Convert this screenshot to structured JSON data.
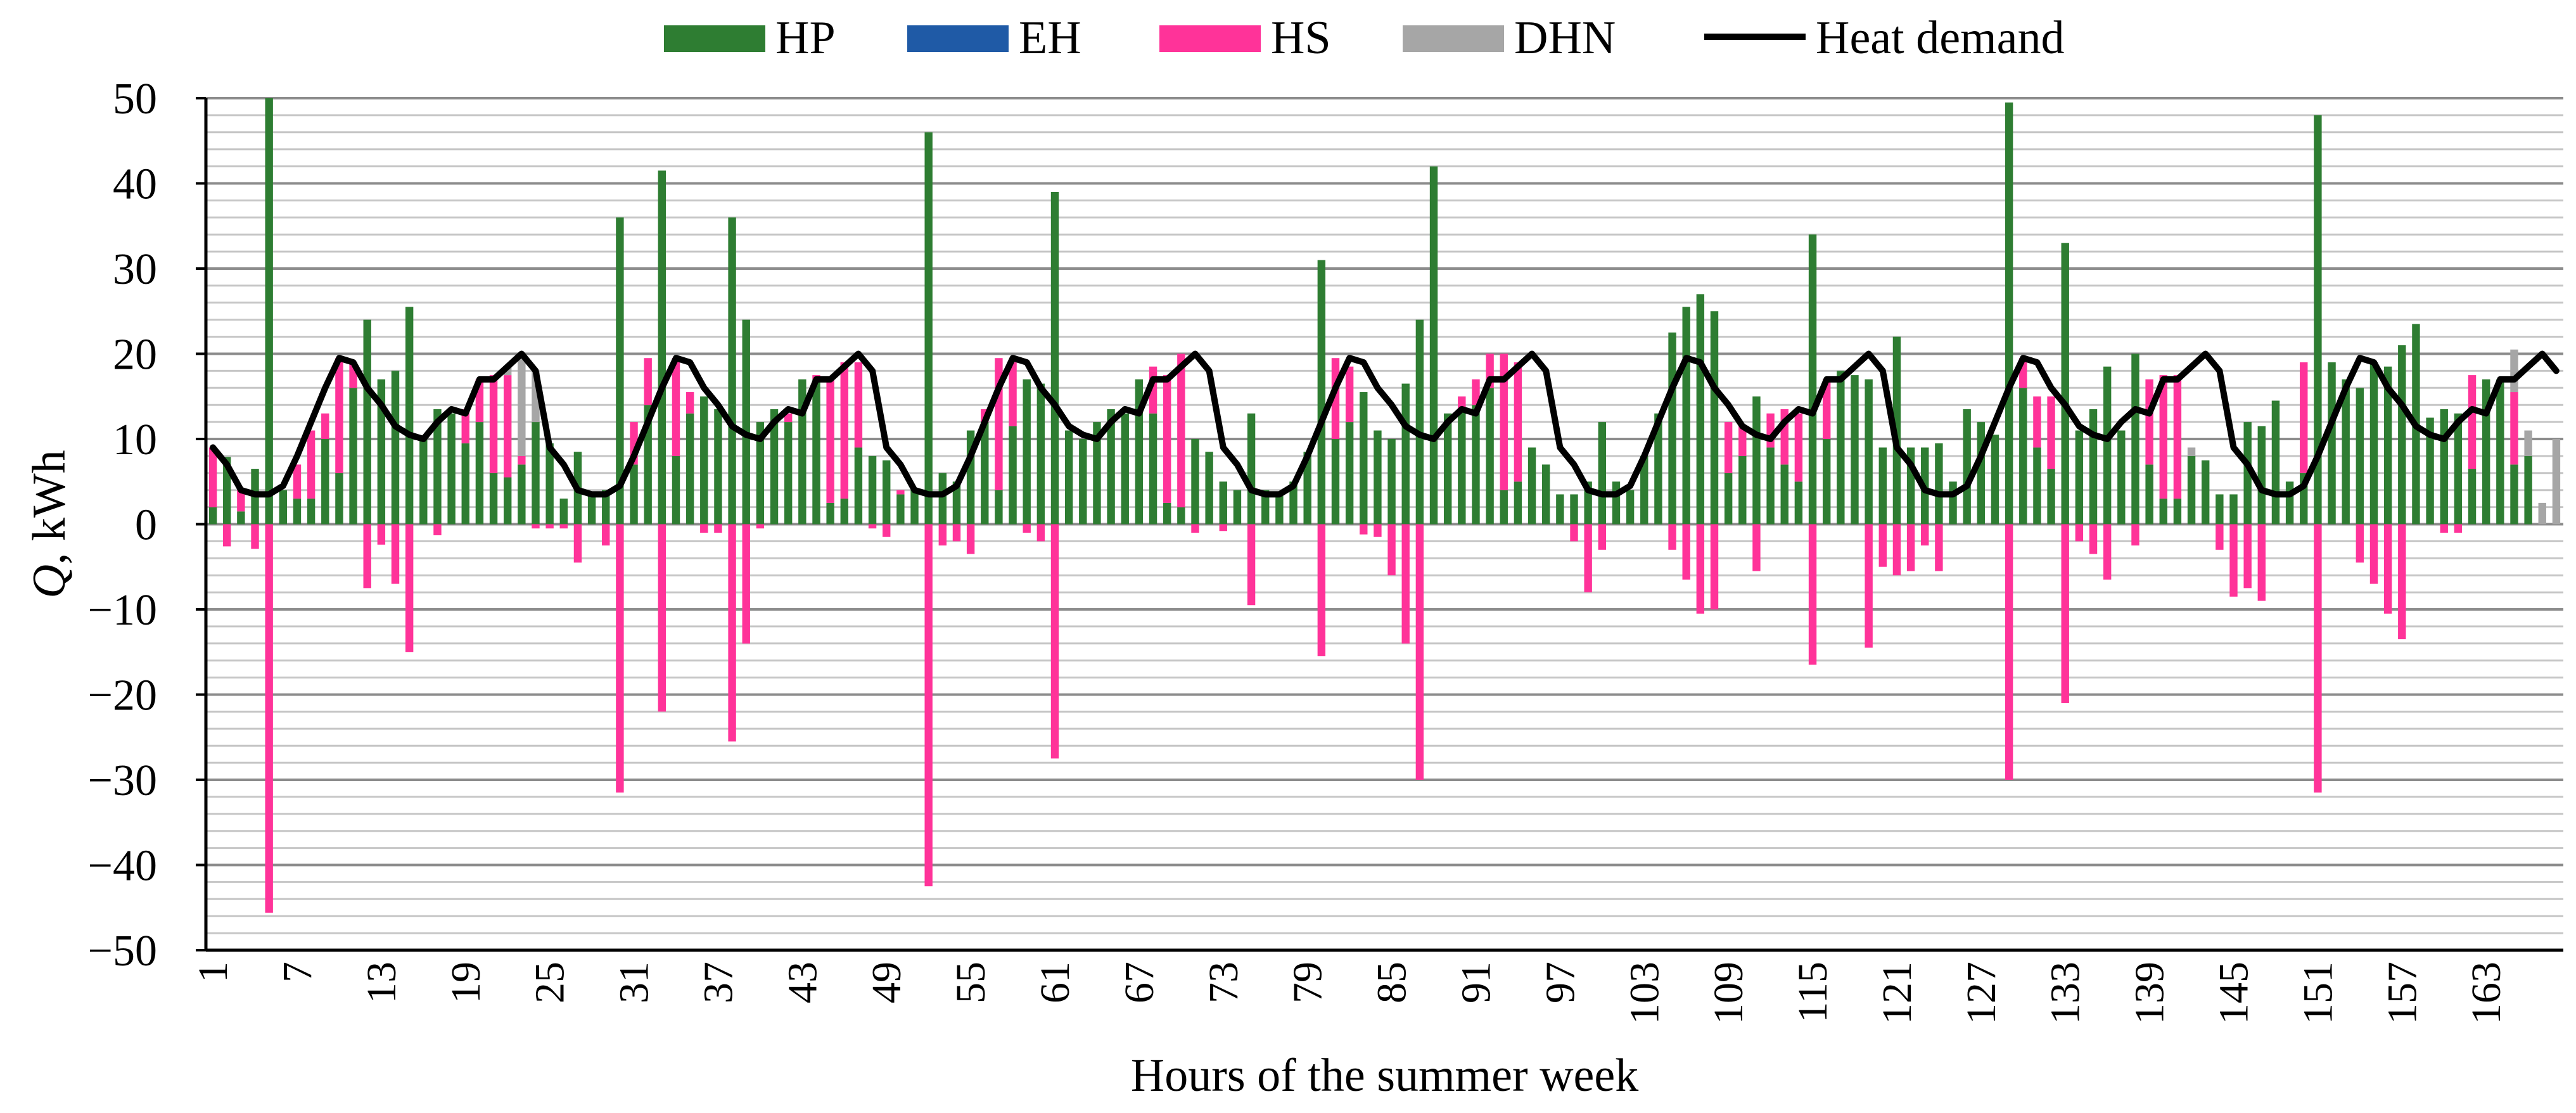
{
  "chart_data": {
    "type": "bar",
    "stacked": true,
    "xlabel": "Hours of the summer week",
    "ylabel_italic": "Q",
    "ylabel_rest": ", kWh",
    "ylim": [
      -50,
      50
    ],
    "yticks": [
      -50,
      -40,
      -30,
      -20,
      -10,
      0,
      10,
      20,
      30,
      40,
      50
    ],
    "xticks": [
      1,
      7,
      13,
      19,
      25,
      31,
      37,
      43,
      49,
      55,
      61,
      67,
      73,
      79,
      85,
      91,
      97,
      103,
      109,
      115,
      121,
      127,
      133,
      139,
      145,
      151,
      157,
      163
    ],
    "hours": 168,
    "grid": "horizontal, every 2 kWh",
    "legend_position": "top",
    "legend": [
      {
        "label": "HP",
        "color": "#2e7d32",
        "kind": "bar"
      },
      {
        "label": "EH",
        "color": "#1f5aa6",
        "kind": "bar"
      },
      {
        "label": "HS",
        "color": "#ff3399",
        "kind": "bar"
      },
      {
        "label": "DHN",
        "color": "#a6a6a6",
        "kind": "bar"
      },
      {
        "label": "Heat demand",
        "color": "#000000",
        "kind": "line"
      }
    ],
    "heat_demand_daily_profile": [
      9,
      7,
      4,
      3.5,
      3.5,
      4.5,
      8,
      12,
      16,
      19.5,
      19,
      16,
      14,
      11.5,
      10.5,
      10,
      12,
      13.5,
      13,
      17,
      17,
      18.5,
      20,
      18
    ],
    "series": [
      {
        "name": "HP",
        "note": "hourly values, 168 hours",
        "values": [
          2.0,
          7.9,
          1.5,
          6.5,
          50.0,
          4.0,
          3.0,
          3.0,
          10.0,
          6.0,
          16.0,
          24.0,
          17.0,
          18.0,
          25.5,
          10.0,
          13.5,
          13.0,
          9.5,
          12.0,
          6.0,
          5.5,
          7.0,
          12.0,
          9.5,
          3.0,
          8.5,
          3.5,
          4.0,
          36.0,
          7.0,
          14.0,
          41.5,
          8.0,
          13.0,
          15.0,
          13.5,
          36.0,
          24.0,
          12.0,
          13.5,
          12.0,
          17.0,
          17.0,
          2.5,
          3.0,
          9.0,
          8.0,
          7.5,
          3.5,
          4.0,
          46.0,
          6.0,
          5.0,
          11.0,
          12.0,
          4.0,
          11.5,
          17.0,
          16.5,
          39.0,
          11.0,
          10.0,
          12.0,
          13.5,
          13.0,
          17.0,
          13.0,
          2.5,
          2.0,
          10.0,
          8.5,
          5.0,
          4.0,
          13.0,
          4.0,
          3.5,
          5.0,
          8.5,
          31.0,
          10.0,
          12.0,
          15.5,
          11.0,
          10.0,
          16.5,
          24.0,
          42.0,
          13.0,
          13.5,
          14.0,
          16.0,
          4.0,
          5.0,
          9.0,
          7.0,
          3.5,
          3.5,
          5.0,
          12.0,
          5.0,
          4.0,
          8.0,
          13.0,
          22.5,
          25.5,
          27.0,
          25.0,
          6.0,
          8.0,
          15.0,
          9.0,
          7.0,
          5.0,
          34.0,
          10.0,
          18.0,
          17.5,
          17.0,
          9.0,
          22.0,
          9.0,
          9.0,
          9.5,
          5.0,
          13.5,
          12.0,
          10.5,
          49.5,
          16.0,
          9.0,
          6.5,
          33.0,
          11.0,
          13.5,
          18.5,
          11.0,
          20.0,
          7.0,
          3.0,
          3.0,
          8.0,
          7.5,
          3.5,
          3.5,
          12.0,
          11.5,
          14.5,
          5.0,
          6.0,
          48.0,
          19.0,
          17.0,
          16.0,
          19.0,
          18.5,
          21.0,
          23.5,
          12.5,
          13.5,
          13.0,
          6.5,
          17.0,
          17.0,
          7.0,
          8.0
        ]
      },
      {
        "name": "EH",
        "values": []
      },
      {
        "name": "HS",
        "note": "positive = discharge, negative = charge",
        "values": [
          7.0,
          -2.6,
          2.5,
          -2.9,
          -45.6,
          0.0,
          4.0,
          8.0,
          3.0,
          13.5,
          3.0,
          -7.5,
          -2.4,
          -7.0,
          -15.0,
          0.0,
          -1.3,
          0.0,
          4.0,
          5.0,
          11.5,
          12.0,
          1.0,
          -0.5,
          -0.5,
          -0.5,
          -4.5,
          0.0,
          -2.5,
          -31.5,
          5.0,
          5.5,
          -22.0,
          11.5,
          2.5,
          -1.0,
          -1.0,
          -25.5,
          -14.0,
          -0.5,
          0.0,
          1.0,
          0.0,
          0.5,
          14.5,
          16.0,
          10.0,
          -0.5,
          -1.5,
          0.5,
          0.0,
          -42.5,
          -2.5,
          -2.0,
          -3.5,
          1.5,
          15.5,
          7.5,
          -1.0,
          -2.0,
          -27.5,
          0.0,
          0.0,
          0.0,
          0.0,
          0.0,
          0.0,
          5.5,
          15.0,
          18.0,
          -1.0,
          0.0,
          -0.8,
          0.0,
          -9.5,
          0.0,
          0.0,
          0.0,
          0.0,
          -15.5,
          9.5,
          6.5,
          -1.2,
          -1.5,
          -6.0,
          -14.0,
          -30.0,
          0.0,
          0.0,
          1.5,
          3.0,
          4.0,
          16.0,
          14.0,
          0.0,
          0.0,
          0.0,
          -2.0,
          -8.0,
          -3.0,
          0.0,
          0.0,
          0.0,
          0.0,
          -3.0,
          -6.5,
          -10.5,
          -10.0,
          6.0,
          3.5,
          -5.5,
          4.0,
          6.5,
          8.0,
          -16.5,
          7.0,
          0.0,
          0.0,
          -14.5,
          -5.0,
          -6.0,
          -5.5,
          -2.5,
          -5.5,
          0.0,
          0.0,
          0.0,
          0.0,
          -30.0,
          3.5,
          6.0,
          8.5,
          -21.0,
          -2.0,
          -3.5,
          -6.5,
          0.0,
          -2.5,
          10.0,
          14.5,
          14.5,
          0.0,
          0.0,
          -3.0,
          -8.5,
          -7.5,
          -9.0,
          0.0,
          0.0,
          13.0,
          -31.5,
          0.0,
          0.0,
          -4.5,
          -7.0,
          -10.5,
          -13.5,
          0.0,
          0.0,
          -1.0,
          -1.0,
          11.0,
          0.0,
          0.0,
          8.5,
          0.0
        ]
      },
      {
        "name": "DHN",
        "values": [
          0.0,
          0.0,
          0.0,
          0.0,
          0.0,
          0.0,
          0.0,
          0.0,
          0.0,
          0.0,
          0.0,
          0.0,
          0.0,
          0.0,
          0.0,
          0.0,
          0.0,
          0.0,
          0.0,
          0.0,
          0.0,
          1.0,
          12.0,
          6.0,
          0.0,
          0.0,
          0.0,
          0.0,
          0.0,
          0.0,
          0.0,
          0.0,
          0.0,
          0.0,
          0.0,
          0.0,
          0.0,
          0.0,
          0.0,
          0.0,
          0.0,
          0.0,
          0.0,
          0.0,
          0.0,
          0.0,
          0.0,
          0.0,
          0.0,
          0.0,
          0.0,
          0.0,
          0.0,
          0.0,
          0.0,
          0.0,
          0.0,
          0.0,
          0.0,
          0.0,
          0.0,
          0.0,
          0.0,
          0.0,
          0.0,
          0.0,
          0.0,
          0.0,
          0.0,
          0.0,
          0.0,
          0.0,
          0.0,
          0.0,
          0.0,
          0.0,
          0.0,
          0.0,
          0.0,
          0.0,
          0.0,
          0.0,
          0.0,
          0.0,
          0.0,
          0.0,
          0.0,
          0.0,
          0.0,
          0.0,
          0.0,
          0.0,
          0.0,
          0.0,
          0.0,
          0.0,
          0.0,
          0.0,
          0.0,
          0.0,
          0.0,
          0.0,
          0.0,
          0.0,
          0.0,
          0.0,
          0.0,
          0.0,
          0.0,
          0.0,
          0.0,
          0.0,
          0.0,
          0.0,
          0.0,
          0.0,
          0.0,
          0.0,
          0.0,
          0.0,
          0.0,
          0.0,
          0.0,
          0.0,
          0.0,
          0.0,
          0.0,
          0.0,
          0.0,
          0.0,
          0.0,
          0.0,
          0.0,
          0.0,
          0.0,
          0.0,
          0.0,
          0.0,
          0.0,
          0.0,
          0.0,
          1.0,
          0.0,
          0.0,
          0.0,
          0.0,
          0.0,
          0.0,
          0.0,
          0.0,
          0.0,
          0.0,
          0.0,
          0.0,
          0.0,
          0.0,
          0.0,
          0.0,
          0.0,
          0.0,
          0.0,
          0.0,
          0.0,
          0.0,
          5.0,
          3.0,
          2.5,
          10.0
        ]
      }
    ]
  }
}
